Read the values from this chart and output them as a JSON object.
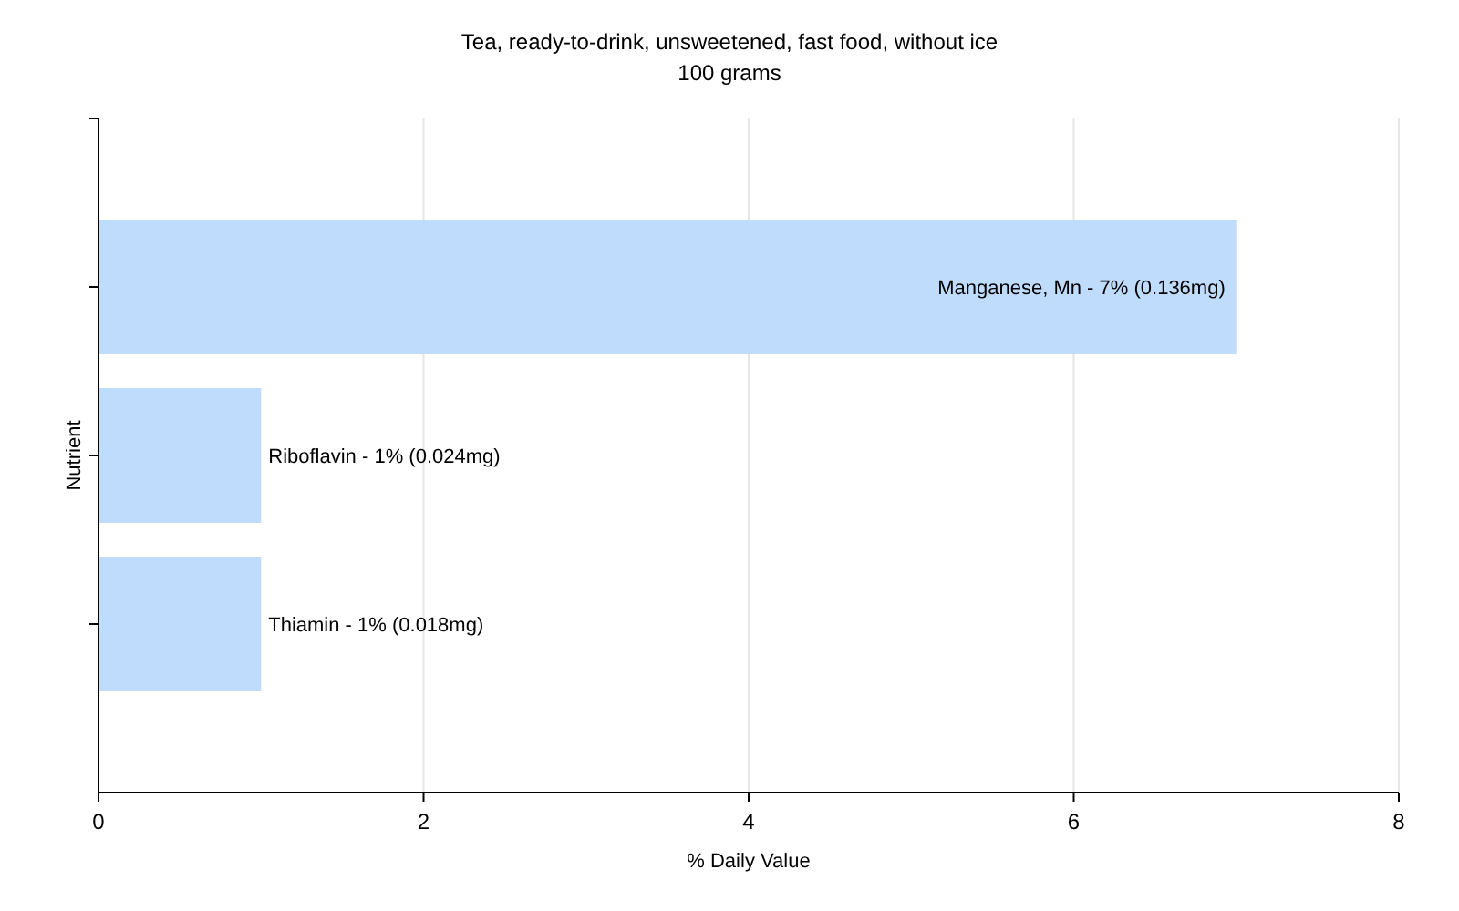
{
  "chart_data": {
    "type": "bar",
    "orientation": "horizontal",
    "title": "Tea, ready-to-drink, unsweetened, fast food, without ice",
    "subtitle": "100 grams",
    "xlabel": "% Daily Value",
    "ylabel": "Nutrient",
    "categories": [
      "Manganese, Mn - 7% (0.136mg)",
      "Riboflavin - 1% (0.024mg)",
      "Thiamin - 1% (0.018mg)"
    ],
    "values": [
      7,
      1,
      1
    ],
    "color": "#bfdcfc",
    "xlim": [
      0,
      8
    ],
    "xticks": [
      0,
      2,
      4,
      6,
      8
    ],
    "grid": "x"
  }
}
